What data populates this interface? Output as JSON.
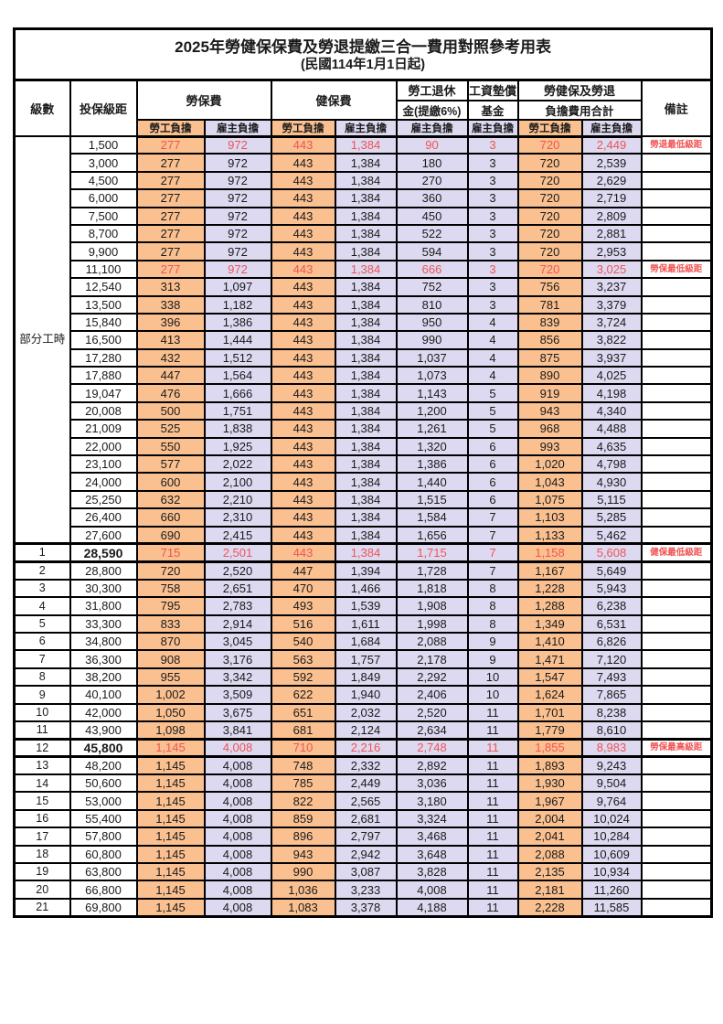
{
  "title": "2025年勞健保保費及勞退提繳三合一費用對照參考用表",
  "subtitle": "(民國114年1月1日起)",
  "colors": {
    "worker_bg": "#fac090",
    "employer_bg": "#dcd9f0",
    "red": "#f05454",
    "border": "#000000"
  },
  "header": {
    "level": "級數",
    "bracket": "投保級距",
    "labor_ins": "勞保費",
    "health_ins": "健保費",
    "pension_line1": "勞工退休",
    "pension_line2": "金(提繳6%)",
    "wage_fund_line1": "工資墊償",
    "wage_fund_line2": "基金",
    "total_line1": "勞健保及勞退",
    "total_line2": "負擔費用合計",
    "remark": "備註",
    "worker": "勞工負擔",
    "employer": "雇主負擔"
  },
  "part_time_label": "部分工時",
  "table": {
    "part_time_rowspan": 23,
    "rows": [
      {
        "level": "",
        "salary": "1,500",
        "values": [
          "277",
          "972",
          "443",
          "1,384",
          "90",
          "3",
          "720",
          "2,449"
        ],
        "remark": "勞退最低級距",
        "red": true
      },
      {
        "level": "",
        "salary": "3,000",
        "values": [
          "277",
          "972",
          "443",
          "1,384",
          "180",
          "3",
          "720",
          "2,539"
        ],
        "remark": ""
      },
      {
        "level": "",
        "salary": "4,500",
        "values": [
          "277",
          "972",
          "443",
          "1,384",
          "270",
          "3",
          "720",
          "2,629"
        ],
        "remark": ""
      },
      {
        "level": "",
        "salary": "6,000",
        "values": [
          "277",
          "972",
          "443",
          "1,384",
          "360",
          "3",
          "720",
          "2,719"
        ],
        "remark": ""
      },
      {
        "level": "",
        "salary": "7,500",
        "values": [
          "277",
          "972",
          "443",
          "1,384",
          "450",
          "3",
          "720",
          "2,809"
        ],
        "remark": ""
      },
      {
        "level": "",
        "salary": "8,700",
        "values": [
          "277",
          "972",
          "443",
          "1,384",
          "522",
          "3",
          "720",
          "2,881"
        ],
        "remark": ""
      },
      {
        "level": "",
        "salary": "9,900",
        "values": [
          "277",
          "972",
          "443",
          "1,384",
          "594",
          "3",
          "720",
          "2,953"
        ],
        "remark": ""
      },
      {
        "level": "",
        "salary": "11,100",
        "values": [
          "277",
          "972",
          "443",
          "1,384",
          "666",
          "3",
          "720",
          "3,025"
        ],
        "remark": "勞保最低級距",
        "red": true
      },
      {
        "level": "",
        "salary": "12,540",
        "values": [
          "313",
          "1,097",
          "443",
          "1,384",
          "752",
          "3",
          "756",
          "3,237"
        ],
        "remark": ""
      },
      {
        "level": "",
        "salary": "13,500",
        "values": [
          "338",
          "1,182",
          "443",
          "1,384",
          "810",
          "3",
          "781",
          "3,379"
        ],
        "remark": ""
      },
      {
        "level": "",
        "salary": "15,840",
        "values": [
          "396",
          "1,386",
          "443",
          "1,384",
          "950",
          "4",
          "839",
          "3,724"
        ],
        "remark": ""
      },
      {
        "level": "",
        "salary": "16,500",
        "values": [
          "413",
          "1,444",
          "443",
          "1,384",
          "990",
          "4",
          "856",
          "3,822"
        ],
        "remark": ""
      },
      {
        "level": "",
        "salary": "17,280",
        "values": [
          "432",
          "1,512",
          "443",
          "1,384",
          "1,037",
          "4",
          "875",
          "3,937"
        ],
        "remark": ""
      },
      {
        "level": "",
        "salary": "17,880",
        "values": [
          "447",
          "1,564",
          "443",
          "1,384",
          "1,073",
          "4",
          "890",
          "4,025"
        ],
        "remark": ""
      },
      {
        "level": "",
        "salary": "19,047",
        "values": [
          "476",
          "1,666",
          "443",
          "1,384",
          "1,143",
          "5",
          "919",
          "4,198"
        ],
        "remark": ""
      },
      {
        "level": "",
        "salary": "20,008",
        "values": [
          "500",
          "1,751",
          "443",
          "1,384",
          "1,200",
          "5",
          "943",
          "4,340"
        ],
        "remark": ""
      },
      {
        "level": "",
        "salary": "21,009",
        "values": [
          "525",
          "1,838",
          "443",
          "1,384",
          "1,261",
          "5",
          "968",
          "4,488"
        ],
        "remark": ""
      },
      {
        "level": "",
        "salary": "22,000",
        "values": [
          "550",
          "1,925",
          "443",
          "1,384",
          "1,320",
          "6",
          "993",
          "4,635"
        ],
        "remark": ""
      },
      {
        "level": "",
        "salary": "23,100",
        "values": [
          "577",
          "2,022",
          "443",
          "1,384",
          "1,386",
          "6",
          "1,020",
          "4,798"
        ],
        "remark": ""
      },
      {
        "level": "",
        "salary": "24,000",
        "values": [
          "600",
          "2,100",
          "443",
          "1,384",
          "1,440",
          "6",
          "1,043",
          "4,930"
        ],
        "remark": ""
      },
      {
        "level": "",
        "salary": "25,250",
        "values": [
          "632",
          "2,210",
          "443",
          "1,384",
          "1,515",
          "6",
          "1,075",
          "5,115"
        ],
        "remark": ""
      },
      {
        "level": "",
        "salary": "26,400",
        "values": [
          "660",
          "2,310",
          "443",
          "1,384",
          "1,584",
          "7",
          "1,103",
          "5,285"
        ],
        "remark": ""
      },
      {
        "level": "",
        "salary": "27,600",
        "values": [
          "690",
          "2,415",
          "443",
          "1,384",
          "1,656",
          "7",
          "1,133",
          "5,462"
        ],
        "remark": ""
      },
      {
        "level": "1",
        "salary": "28,590",
        "values": [
          "715",
          "2,501",
          "443",
          "1,384",
          "1,715",
          "7",
          "1,158",
          "5,608"
        ],
        "remark": "健保最低級距",
        "red": true,
        "thick": true,
        "bold": true
      },
      {
        "level": "2",
        "salary": "28,800",
        "values": [
          "720",
          "2,520",
          "447",
          "1,394",
          "1,728",
          "7",
          "1,167",
          "5,649"
        ],
        "remark": ""
      },
      {
        "level": "3",
        "salary": "30,300",
        "values": [
          "758",
          "2,651",
          "470",
          "1,466",
          "1,818",
          "8",
          "1,228",
          "5,943"
        ],
        "remark": ""
      },
      {
        "level": "4",
        "salary": "31,800",
        "values": [
          "795",
          "2,783",
          "493",
          "1,539",
          "1,908",
          "8",
          "1,288",
          "6,238"
        ],
        "remark": ""
      },
      {
        "level": "5",
        "salary": "33,300",
        "values": [
          "833",
          "2,914",
          "516",
          "1,611",
          "1,998",
          "8",
          "1,349",
          "6,531"
        ],
        "remark": ""
      },
      {
        "level": "6",
        "salary": "34,800",
        "values": [
          "870",
          "3,045",
          "540",
          "1,684",
          "2,088",
          "9",
          "1,410",
          "6,826"
        ],
        "remark": ""
      },
      {
        "level": "7",
        "salary": "36,300",
        "values": [
          "908",
          "3,176",
          "563",
          "1,757",
          "2,178",
          "9",
          "1,471",
          "7,120"
        ],
        "remark": ""
      },
      {
        "level": "8",
        "salary": "38,200",
        "values": [
          "955",
          "3,342",
          "592",
          "1,849",
          "2,292",
          "10",
          "1,547",
          "7,493"
        ],
        "remark": ""
      },
      {
        "level": "9",
        "salary": "40,100",
        "values": [
          "1,002",
          "3,509",
          "622",
          "1,940",
          "2,406",
          "10",
          "1,624",
          "7,865"
        ],
        "remark": ""
      },
      {
        "level": "10",
        "salary": "42,000",
        "values": [
          "1,050",
          "3,675",
          "651",
          "2,032",
          "2,520",
          "11",
          "1,701",
          "8,238"
        ],
        "remark": ""
      },
      {
        "level": "11",
        "salary": "43,900",
        "values": [
          "1,098",
          "3,841",
          "681",
          "2,124",
          "2,634",
          "11",
          "1,779",
          "8,610"
        ],
        "remark": ""
      },
      {
        "level": "12",
        "salary": "45,800",
        "values": [
          "1,145",
          "4,008",
          "710",
          "2,216",
          "2,748",
          "11",
          "1,855",
          "8,983"
        ],
        "remark": "勞保最高級距",
        "red": true,
        "thick": true,
        "bold": true
      },
      {
        "level": "13",
        "salary": "48,200",
        "values": [
          "1,145",
          "4,008",
          "748",
          "2,332",
          "2,892",
          "11",
          "1,893",
          "9,243"
        ],
        "remark": ""
      },
      {
        "level": "14",
        "salary": "50,600",
        "values": [
          "1,145",
          "4,008",
          "785",
          "2,449",
          "3,036",
          "11",
          "1,930",
          "9,504"
        ],
        "remark": ""
      },
      {
        "level": "15",
        "salary": "53,000",
        "values": [
          "1,145",
          "4,008",
          "822",
          "2,565",
          "3,180",
          "11",
          "1,967",
          "9,764"
        ],
        "remark": ""
      },
      {
        "level": "16",
        "salary": "55,400",
        "values": [
          "1,145",
          "4,008",
          "859",
          "2,681",
          "3,324",
          "11",
          "2,004",
          "10,024"
        ],
        "remark": ""
      },
      {
        "level": "17",
        "salary": "57,800",
        "values": [
          "1,145",
          "4,008",
          "896",
          "2,797",
          "3,468",
          "11",
          "2,041",
          "10,284"
        ],
        "remark": ""
      },
      {
        "level": "18",
        "salary": "60,800",
        "values": [
          "1,145",
          "4,008",
          "943",
          "2,942",
          "3,648",
          "11",
          "2,088",
          "10,609"
        ],
        "remark": ""
      },
      {
        "level": "19",
        "salary": "63,800",
        "values": [
          "1,145",
          "4,008",
          "990",
          "3,087",
          "3,828",
          "11",
          "2,135",
          "10,934"
        ],
        "remark": ""
      },
      {
        "level": "20",
        "salary": "66,800",
        "values": [
          "1,145",
          "4,008",
          "1,036",
          "3,233",
          "4,008",
          "11",
          "2,181",
          "11,260"
        ],
        "remark": ""
      },
      {
        "level": "21",
        "salary": "69,800",
        "values": [
          "1,145",
          "4,008",
          "1,083",
          "3,378",
          "4,188",
          "11",
          "2,228",
          "11,585"
        ],
        "remark": ""
      }
    ]
  }
}
